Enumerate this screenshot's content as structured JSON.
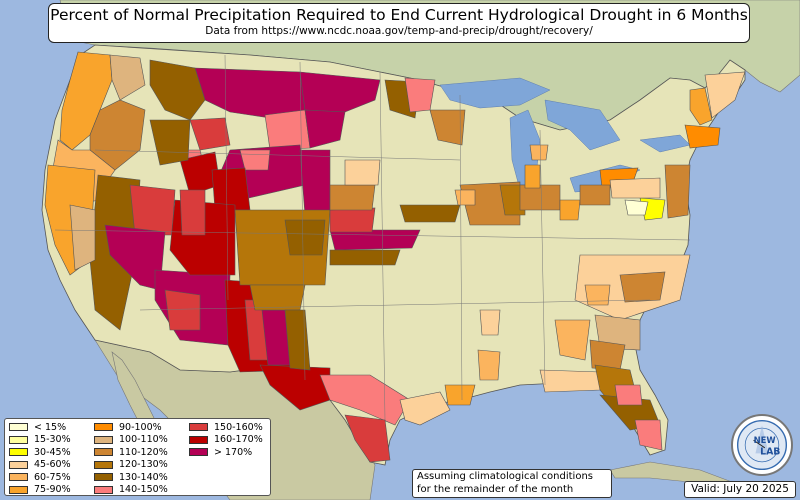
{
  "title": "Percent of Normal Precipitation Required to End Current Hydrological Drought in 6 Months",
  "subtitle": "Data from https://www.ncdc.noaa.gov/temp-and-precip/drought/recovery/",
  "legend": [
    {
      "label": "< 15%",
      "color": "#ffffd4"
    },
    {
      "label": "15-30%",
      "color": "#ffff9e"
    },
    {
      "label": "30-45%",
      "color": "#ffff00"
    },
    {
      "label": "45-60%",
      "color": "#fcd19a"
    },
    {
      "label": "60-75%",
      "color": "#fbb45e"
    },
    {
      "label": "75-90%",
      "color": "#f9a42c"
    },
    {
      "label": "90-100%",
      "color": "#ff8c00"
    },
    {
      "label": "100-110%",
      "color": "#deb47e"
    },
    {
      "label": "110-120%",
      "color": "#cd8532"
    },
    {
      "label": "120-130%",
      "color": "#b5760a"
    },
    {
      "label": "130-140%",
      "color": "#946000"
    },
    {
      "label": "140-150%",
      "color": "#fa7c7c"
    },
    {
      "label": "150-160%",
      "color": "#d93c3c"
    },
    {
      "label": "160-170%",
      "color": "#bb0000"
    },
    {
      "label": "> 170%",
      "color": "#b40055"
    }
  ],
  "note": {
    "line1": "Assuming climatological conditions",
    "line2": "for the remainder of the month"
  },
  "valid": "Valid: July 20 2025",
  "logo": {
    "text_top": "NEW",
    "text_bottom": "LAB"
  },
  "colors": {
    "ocean": "#9db8e0",
    "land_neighbors": "#c9d2ae",
    "us_land": "#e6e4b8",
    "lakes": "#7fa6d8"
  }
}
